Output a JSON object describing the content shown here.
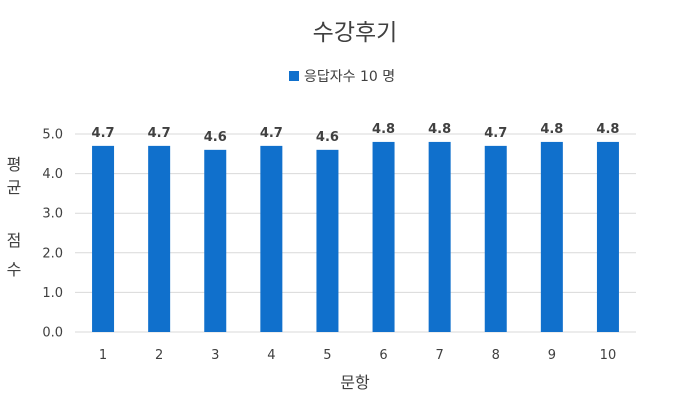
{
  "chart_data": {
    "type": "bar",
    "title": "수강후기",
    "xlabel": "문항",
    "ylabel": "평균 점수",
    "ylabel_lines": [
      "평",
      "균",
      "",
      "점",
      "수"
    ],
    "categories": [
      "1",
      "2",
      "3",
      "4",
      "5",
      "6",
      "7",
      "8",
      "9",
      "10"
    ],
    "series": [
      {
        "name": "응답자수 10 명",
        "values": [
          4.7,
          4.7,
          4.6,
          4.7,
          4.6,
          4.8,
          4.8,
          4.7,
          4.8,
          4.8
        ],
        "color": "#1070CC"
      }
    ],
    "ylim": [
      0,
      5
    ],
    "yticks": [
      "0.0",
      "1.0",
      "2.0",
      "3.0",
      "4.0",
      "5.0"
    ],
    "grid": true,
    "gridColor": "#D9D9D9",
    "legend": "top-center",
    "data_labels": [
      "4.7",
      "4.7",
      "4.6",
      "4.7",
      "4.6",
      "4.8",
      "4.8",
      "4.7",
      "4.8",
      "4.8"
    ]
  }
}
